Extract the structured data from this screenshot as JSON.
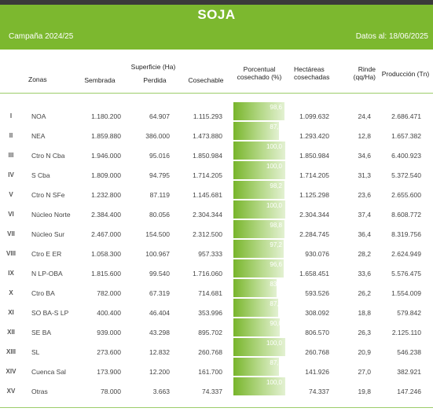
{
  "header": {
    "title": "SOJA",
    "campaign": "Campaña 2024/25",
    "date": "Datos al: 18/06/2025",
    "accent_color": "#7cb82f"
  },
  "columns": {
    "zonas": "Zonas",
    "superficie_group": "Superficie (Ha)",
    "sembrada": "Sembrada",
    "perdida": "Perdida",
    "cosechable": "Cosechable",
    "porcentual_1": "Porcentual",
    "porcentual_2": "cosechado (%)",
    "hectareas_1": "Hectáreas",
    "hectareas_2": "cosechadas",
    "rinde_1": "Rinde",
    "rinde_2": "(qq/Ha)",
    "produccion": "Producción (Tn)"
  },
  "rows": [
    {
      "num": "I",
      "zone": "NOA",
      "sembrada": "1.180.200",
      "perdida": "64.907",
      "cosechable": "1.115.293",
      "pct": "98,6",
      "pct_value": 98.6,
      "hectareas": "1.099.632",
      "rinde": "24,4",
      "produccion": "2.686.471"
    },
    {
      "num": "II",
      "zone": "NEA",
      "sembrada": "1.859.880",
      "perdida": "386.000",
      "cosechable": "1.473.880",
      "pct": "87,8",
      "pct_value": 87.8,
      "hectareas": "1.293.420",
      "rinde": "12,8",
      "produccion": "1.657.382"
    },
    {
      "num": "III",
      "zone": "Ctro N Cba",
      "sembrada": "1.946.000",
      "perdida": "95.016",
      "cosechable": "1.850.984",
      "pct": "100,0",
      "pct_value": 100.0,
      "hectareas": "1.850.984",
      "rinde": "34,6",
      "produccion": "6.400.923"
    },
    {
      "num": "IV",
      "zone": "S Cba",
      "sembrada": "1.809.000",
      "perdida": "94.795",
      "cosechable": "1.714.205",
      "pct": "100,0",
      "pct_value": 100.0,
      "hectareas": "1.714.205",
      "rinde": "31,3",
      "produccion": "5.372.540"
    },
    {
      "num": "V",
      "zone": "Ctro N SFe",
      "sembrada": "1.232.800",
      "perdida": "87.119",
      "cosechable": "1.145.681",
      "pct": "98,2",
      "pct_value": 98.2,
      "hectareas": "1.125.298",
      "rinde": "23,6",
      "produccion": "2.655.600"
    },
    {
      "num": "VI",
      "zone": "Núcleo Norte",
      "sembrada": "2.384.400",
      "perdida": "80.056",
      "cosechable": "2.304.344",
      "pct": "100,0",
      "pct_value": 100.0,
      "hectareas": "2.304.344",
      "rinde": "37,4",
      "produccion": "8.608.772"
    },
    {
      "num": "VII",
      "zone": "Núcleo Sur",
      "sembrada": "2.467.000",
      "perdida": "154.500",
      "cosechable": "2.312.500",
      "pct": "98,8",
      "pct_value": 98.8,
      "hectareas": "2.284.745",
      "rinde": "36,4",
      "produccion": "8.319.756"
    },
    {
      "num": "VIII",
      "zone": "Ctro E ER",
      "sembrada": "1.058.300",
      "perdida": "100.967",
      "cosechable": "957.333",
      "pct": "97,2",
      "pct_value": 97.2,
      "hectareas": "930.076",
      "rinde": "28,2",
      "produccion": "2.624.949"
    },
    {
      "num": "IX",
      "zone": "N LP-OBA",
      "sembrada": "1.815.600",
      "perdida": "99.540",
      "cosechable": "1.716.060",
      "pct": "96,6",
      "pct_value": 96.6,
      "hectareas": "1.658.451",
      "rinde": "33,6",
      "produccion": "5.576.475"
    },
    {
      "num": "X",
      "zone": "Ctro BA",
      "sembrada": "782.000",
      "perdida": "67.319",
      "cosechable": "714.681",
      "pct": "83,0",
      "pct_value": 83.0,
      "hectareas": "593.526",
      "rinde": "26,2",
      "produccion": "1.554.009"
    },
    {
      "num": "XI",
      "zone": "SO BA-S LP",
      "sembrada": "400.400",
      "perdida": "46.404",
      "cosechable": "353.996",
      "pct": "87,0",
      "pct_value": 87.0,
      "hectareas": "308.092",
      "rinde": "18,8",
      "produccion": "579.842"
    },
    {
      "num": "XII",
      "zone": "SE BA",
      "sembrada": "939.000",
      "perdida": "43.298",
      "cosechable": "895.702",
      "pct": "90,0",
      "pct_value": 90.0,
      "hectareas": "806.570",
      "rinde": "26,3",
      "produccion": "2.125.110"
    },
    {
      "num": "XIII",
      "zone": "SL",
      "sembrada": "273.600",
      "perdida": "12.832",
      "cosechable": "260.768",
      "pct": "100,0",
      "pct_value": 100.0,
      "hectareas": "260.768",
      "rinde": "20,9",
      "produccion": "546.238"
    },
    {
      "num": "XIV",
      "zone": "Cuenca Sal",
      "sembrada": "173.900",
      "perdida": "12.200",
      "cosechable": "161.700",
      "pct": "87,8",
      "pct_value": 87.8,
      "hectareas": "141.926",
      "rinde": "27,0",
      "produccion": "382.921"
    },
    {
      "num": "XV",
      "zone": "Otras",
      "sembrada": "78.000",
      "perdida": "3.663",
      "cosechable": "74.337",
      "pct": "100,0",
      "pct_value": 100.0,
      "hectareas": "74.337",
      "rinde": "19,8",
      "produccion": "147.246"
    }
  ]
}
